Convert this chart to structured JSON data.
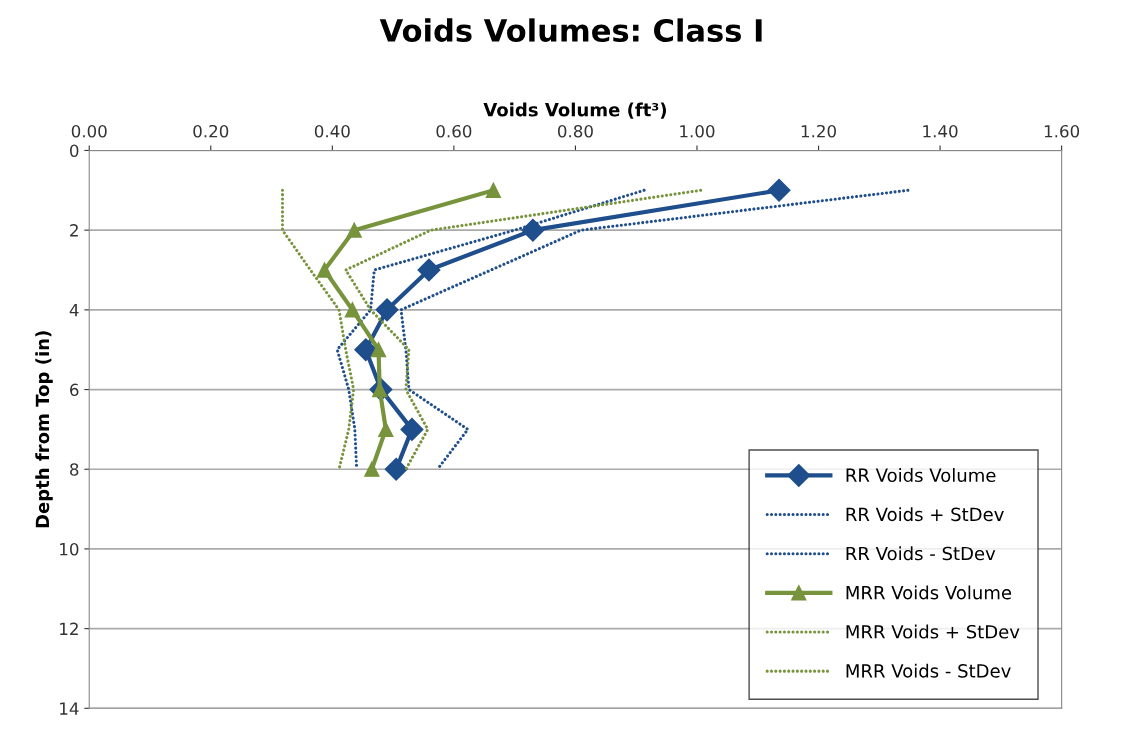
{
  "chart_data": {
    "type": "line",
    "title": "Voids Volumes: Class I",
    "xlabel": "Voids Volume (ft³)",
    "ylabel": "Depth from Top (in)",
    "xlim": [
      0,
      1.6
    ],
    "xticks": [
      {
        "value": 0,
        "label": "0.00"
      },
      {
        "value": 0.2,
        "label": "0.20"
      },
      {
        "value": 0.4,
        "label": "0.40"
      },
      {
        "value": 0.6,
        "label": "0.60"
      },
      {
        "value": 0.8,
        "label": "0.80"
      },
      {
        "value": 1.0,
        "label": "1.00"
      },
      {
        "value": 1.2,
        "label": "1.20"
      },
      {
        "value": 1.4,
        "label": "1.40"
      },
      {
        "value": 1.6,
        "label": "1.60"
      }
    ],
    "ylim": [
      14,
      0
    ],
    "yticks": [
      0,
      2,
      4,
      6,
      8,
      10,
      12,
      14
    ],
    "grid": "y",
    "legend": "bottom right",
    "series": [
      {
        "name": "RR Voids Volume",
        "color": "#1f4e8c",
        "marker": "diamond",
        "line_style": "solid",
        "x": [
          1.135,
          0.73,
          0.559,
          0.49,
          0.455,
          0.48,
          0.531,
          0.505
        ],
        "values": [
          1,
          2,
          3,
          4,
          5,
          6,
          7,
          8
        ]
      },
      {
        "name": "RR Voids + StDev",
        "color": "#1f4e8c",
        "marker": "none",
        "line_style": "dotted",
        "x": [
          1.347,
          0.809,
          0.661,
          0.513,
          0.521,
          0.526,
          0.623,
          0.573
        ],
        "values": [
          1,
          2,
          3,
          4,
          5,
          6,
          7,
          8
        ]
      },
      {
        "name": "RR Voids - StDev",
        "color": "#1f4e8c",
        "marker": "none",
        "line_style": "dotted",
        "x": [
          0.913,
          0.7,
          0.469,
          0.463,
          0.408,
          0.427,
          0.437,
          0.44
        ],
        "values": [
          1,
          2,
          3,
          4,
          5,
          6,
          7,
          8
        ]
      },
      {
        "name": "MRR Voids Volume",
        "color": "#77933c",
        "marker": "triangle",
        "line_style": "solid",
        "x": [
          0.665,
          0.436,
          0.387,
          0.433,
          0.476,
          0.478,
          0.488,
          0.465
        ],
        "values": [
          1,
          2,
          3,
          4,
          5,
          6,
          7,
          8
        ]
      },
      {
        "name": "MRR Voids + StDev",
        "color": "#77933c",
        "marker": "none",
        "line_style": "dotted",
        "x": [
          1.006,
          0.562,
          0.422,
          0.463,
          0.526,
          0.521,
          0.557,
          0.521
        ],
        "values": [
          1,
          2,
          3,
          4,
          5,
          6,
          7,
          8
        ]
      },
      {
        "name": "MRR Voids - StDev",
        "color": "#77933c",
        "marker": "none",
        "line_style": "dotted",
        "x": [
          0.318,
          0.318,
          0.364,
          0.411,
          0.422,
          0.435,
          0.427,
          0.411
        ],
        "values": [
          1,
          2,
          3,
          4,
          5,
          6,
          7,
          8
        ]
      }
    ]
  }
}
